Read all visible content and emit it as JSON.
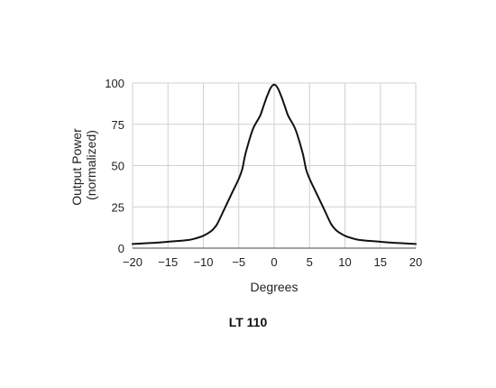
{
  "chart_data": {
    "type": "line",
    "title": "LT 110",
    "xlabel": "Degrees",
    "ylabel_lines": [
      "Output Power",
      "(normalized)"
    ],
    "xlim": [
      -20,
      20
    ],
    "ylim": [
      0,
      100
    ],
    "xticks": [
      -20,
      -15,
      -10,
      -5,
      0,
      5,
      10,
      15,
      20
    ],
    "xtick_labels": [
      "−20",
      "−15",
      "−10",
      "−5",
      "0",
      "5",
      "10",
      "15",
      "20"
    ],
    "yticks": [
      0,
      25,
      50,
      75,
      100
    ],
    "ytick_labels": [
      "0",
      "25",
      "50",
      "75",
      "100"
    ],
    "grid": true,
    "line_color": "#111111",
    "grid_color": "#d0d0d0",
    "series": [
      {
        "x": [
          -20,
          -18,
          -16,
          -14,
          -12,
          -11,
          -10,
          -9,
          -8.5,
          -8,
          -7,
          -6,
          -5,
          -4.5,
          -4,
          -3,
          -2,
          -1.5,
          -1,
          -0.5,
          0,
          0.5,
          1,
          1.5,
          2,
          3,
          4,
          4.5,
          5,
          6,
          7,
          8,
          8.5,
          9,
          10,
          11,
          12,
          14,
          16,
          18,
          20
        ],
        "y": [
          2.5,
          3,
          3.5,
          4.2,
          5,
          6,
          7.5,
          10,
          12,
          15,
          24,
          33,
          42,
          48,
          58,
          72,
          80,
          86,
          92,
          97,
          99,
          97,
          92,
          86,
          80,
          72,
          58,
          48,
          42,
          33,
          24,
          15,
          12,
          10,
          7.5,
          6,
          5,
          4.2,
          3.5,
          3,
          2.5
        ]
      }
    ]
  }
}
